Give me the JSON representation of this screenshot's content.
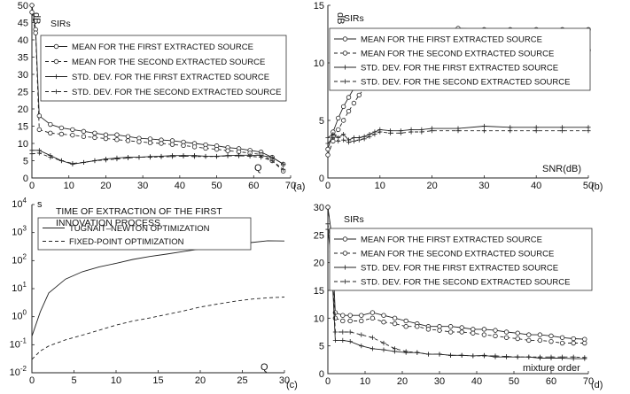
{
  "chart_data": [
    {
      "panel": "(a)",
      "type": "line",
      "title": "SIRs",
      "ylabel": "dB",
      "xlabel": "Q",
      "xlim": [
        0,
        70
      ],
      "ylim": [
        0,
        50
      ],
      "xticks": [
        0,
        10,
        20,
        30,
        40,
        50,
        60,
        70
      ],
      "yticks": [
        0,
        5,
        10,
        15,
        20,
        25,
        30,
        35,
        40,
        45,
        50
      ],
      "legend_position": "top-right",
      "series": [
        {
          "name": "MEAN FOR THE FIRST EXTRACTED SOURCE",
          "style": "solid",
          "marker": "circle",
          "x": [
            0,
            1,
            2,
            5,
            8,
            11,
            14,
            17,
            20,
            23,
            26,
            29,
            32,
            35,
            38,
            41,
            44,
            47,
            50,
            53,
            56,
            59,
            62,
            65,
            68
          ],
          "y": [
            50,
            43,
            18,
            15.5,
            14.5,
            14,
            13.5,
            13,
            12.5,
            12.5,
            12,
            11.5,
            11.3,
            11,
            10.8,
            10.4,
            10,
            9.6,
            9.3,
            8.8,
            8.5,
            8,
            7.5,
            6,
            4
          ]
        },
        {
          "name": "MEAN FOR THE SECOND EXTRACTED SOURCE",
          "style": "dashed",
          "marker": "circle",
          "x": [
            0,
            1,
            2,
            5,
            8,
            11,
            14,
            17,
            20,
            23,
            26,
            29,
            32,
            35,
            38,
            41,
            44,
            47,
            50,
            53,
            56,
            59,
            62,
            65,
            68
          ],
          "y": [
            48,
            42,
            14,
            13,
            12.7,
            12.4,
            12,
            11.7,
            11.4,
            11.1,
            10.8,
            10.5,
            10.2,
            10,
            9.7,
            9.4,
            9,
            8.6,
            8.3,
            7.9,
            7.6,
            7.2,
            6.8,
            5,
            2
          ]
        },
        {
          "name": "STD. DEV. FOR THE FIRST EXTRACTED SOURCE",
          "style": "solid",
          "marker": "plus",
          "x": [
            0,
            2,
            5,
            8,
            11,
            14,
            17,
            20,
            23,
            26,
            29,
            32,
            35,
            38,
            41,
            44,
            47,
            50,
            53,
            56,
            59,
            62,
            65,
            68
          ],
          "y": [
            8,
            8,
            6.5,
            5,
            4,
            4.5,
            5,
            5.5,
            5.8,
            6,
            6,
            6.2,
            6.3,
            6.5,
            6.5,
            6.5,
            6.3,
            6.3,
            6.5,
            6.6,
            6.6,
            6.5,
            6,
            4
          ]
        },
        {
          "name": "STD. DEV. FOR THE SECOND EXTRACTED SOURCE",
          "style": "dashed",
          "marker": "plus",
          "x": [
            0,
            2,
            5,
            8,
            11,
            14,
            17,
            20,
            23,
            26,
            29,
            32,
            35,
            38,
            41,
            44,
            47,
            50,
            53,
            56,
            59,
            62,
            65,
            68
          ],
          "y": [
            7,
            7.2,
            6,
            5,
            4.2,
            4.5,
            5,
            5.2,
            5.5,
            5.8,
            6,
            6,
            6.1,
            6.2,
            6.3,
            6.2,
            6.2,
            6.2,
            6.4,
            6.4,
            6.3,
            6,
            5,
            2.5
          ]
        }
      ]
    },
    {
      "panel": "(b)",
      "type": "line",
      "title": "SIRs",
      "ylabel": "dB",
      "xlabel": "SNR(dB)",
      "xlim": [
        0,
        50
      ],
      "ylim": [
        0,
        15
      ],
      "xticks": [
        0,
        10,
        20,
        30,
        40,
        50
      ],
      "yticks": [
        0,
        5,
        10,
        15
      ],
      "legend_position": "top-right",
      "series": [
        {
          "name": "MEAN FOR THE FIRST EXTRACTED SOURCE",
          "style": "solid",
          "marker": "circle",
          "x": [
            0,
            1,
            2,
            3,
            4,
            5,
            6,
            7,
            8,
            9,
            10,
            12,
            14,
            16,
            18,
            20,
            25,
            30,
            35,
            40,
            45,
            50
          ],
          "y": [
            2.5,
            4,
            5.2,
            6.2,
            7,
            7.8,
            8.5,
            9,
            9.5,
            10,
            10.4,
            11.2,
            11.8,
            12.3,
            12.6,
            12.8,
            13,
            12.9,
            12.9,
            12.9,
            12.9,
            12.9
          ]
        },
        {
          "name": "MEAN FOR THE SECOND EXTRACTED SOURCE",
          "style": "dashed",
          "marker": "circle",
          "x": [
            0,
            1,
            2,
            3,
            4,
            5,
            6,
            7,
            8,
            9,
            10,
            12,
            14,
            16,
            18,
            20,
            25,
            30,
            35,
            40,
            45,
            50
          ],
          "y": [
            2,
            3.2,
            4.2,
            5,
            5.8,
            6.5,
            7.2,
            7.8,
            8.3,
            8.8,
            9.3,
            10,
            10.5,
            10.8,
            11,
            11.1,
            11.2,
            11.2,
            11.2,
            11.2,
            11.2,
            11.1
          ]
        },
        {
          "name": "STD. DEV. FOR THE FIRST EXTRACTED SOURCE",
          "style": "solid",
          "marker": "plus",
          "x": [
            0,
            1,
            2,
            3,
            4,
            5,
            6,
            7,
            8,
            9,
            10,
            12,
            14,
            16,
            18,
            20,
            25,
            30,
            35,
            40,
            45,
            50
          ],
          "y": [
            3.5,
            3.8,
            3.5,
            3.8,
            3.3,
            3.5,
            3.5,
            3.6,
            3.8,
            4,
            4.2,
            4.1,
            4.1,
            4.2,
            4.2,
            4.3,
            4.3,
            4.5,
            4.4,
            4.4,
            4.4,
            4.4
          ]
        },
        {
          "name": "STD. DEV. FOR THE SECOND EXTRACTED SOURCE",
          "style": "dashed",
          "marker": "plus",
          "x": [
            0,
            1,
            2,
            3,
            4,
            5,
            6,
            7,
            8,
            9,
            10,
            12,
            14,
            16,
            18,
            20,
            25,
            30,
            35,
            40,
            45,
            50
          ],
          "y": [
            3,
            3.5,
            3.2,
            3.3,
            3.1,
            3.2,
            3.3,
            3.4,
            3.6,
            3.8,
            4,
            3.9,
            3.9,
            4,
            4,
            4.1,
            4.1,
            4.1,
            4.1,
            4.1,
            4.1,
            4.1
          ]
        }
      ]
    },
    {
      "panel": "(c)",
      "type": "line",
      "title": "TIME OF EXTRACTION OF THE FIRST INNOVATION PROCESS",
      "ylabel": "s",
      "xlabel": "Q",
      "xlim": [
        0,
        30
      ],
      "ylim": [
        0.01,
        10000
      ],
      "yscale": "log",
      "xticks": [
        0,
        5,
        10,
        15,
        20,
        25,
        30
      ],
      "ytick_exponents": [
        -2,
        -1,
        0,
        1,
        2,
        3,
        4
      ],
      "legend_position": "top-left",
      "series": [
        {
          "name": "TUGNAIT–NEWTON OPTIMIZATION",
          "style": "solid",
          "marker": "none",
          "x": [
            0,
            1,
            2,
            4,
            6,
            8,
            10,
            12,
            14,
            16,
            18,
            20,
            22,
            24,
            26,
            28,
            30
          ],
          "y": [
            0.2,
            1.5,
            7,
            22,
            40,
            60,
            80,
            110,
            140,
            170,
            210,
            260,
            310,
            370,
            440,
            510,
            500
          ]
        },
        {
          "name": "FIXED-POINT OPTIMIZATION",
          "style": "dashed",
          "marker": "none",
          "x": [
            0,
            1,
            2,
            4,
            6,
            8,
            10,
            12,
            14,
            16,
            18,
            20,
            22,
            24,
            26,
            28,
            30
          ],
          "y": [
            0.03,
            0.06,
            0.09,
            0.15,
            0.22,
            0.33,
            0.5,
            0.7,
            0.9,
            1.2,
            1.6,
            2.2,
            2.8,
            3.5,
            4.2,
            4.7,
            5
          ]
        }
      ]
    },
    {
      "panel": "(d)",
      "type": "line",
      "title": "SIRs",
      "ylabel": "",
      "xlabel": "mixture order",
      "xlim": [
        0,
        70
      ],
      "ylim": [
        0,
        30
      ],
      "xticks": [
        0,
        10,
        20,
        30,
        40,
        50,
        60,
        70
      ],
      "yticks": [
        0,
        5,
        10,
        15,
        20,
        25,
        30
      ],
      "legend_position": "top-right",
      "series": [
        {
          "name": "MEAN FOR THE FIRST EXTRACTED SOURCE",
          "style": "solid",
          "marker": "circle",
          "x": [
            0,
            1,
            2,
            4,
            6,
            9,
            12,
            15,
            18,
            21,
            24,
            27,
            30,
            33,
            36,
            39,
            42,
            45,
            48,
            51,
            54,
            57,
            60,
            63,
            66,
            69
          ],
          "y": [
            30,
            25,
            11,
            10.5,
            10.5,
            10.5,
            11,
            10.5,
            10,
            9.5,
            9,
            8.5,
            8.5,
            8.5,
            8.3,
            8,
            8,
            7.8,
            7.5,
            7.3,
            7,
            7,
            6.8,
            6.5,
            6.3,
            6.2
          ]
        },
        {
          "name": "MEAN FOR THE SECOND EXTRACTED SOURCE",
          "style": "dashed",
          "marker": "circle",
          "x": [
            0,
            1,
            2,
            4,
            6,
            9,
            12,
            15,
            18,
            21,
            24,
            27,
            30,
            33,
            36,
            39,
            42,
            45,
            48,
            51,
            54,
            57,
            60,
            63,
            66,
            69
          ],
          "y": [
            30,
            25,
            10,
            9.5,
            9.5,
            9.5,
            10,
            9.3,
            9,
            8.5,
            8.5,
            8,
            7.8,
            7.5,
            7.5,
            7.3,
            7,
            6.8,
            6.5,
            6.3,
            6,
            6,
            5.8,
            5.5,
            5.5,
            5.5
          ]
        },
        {
          "name": "STD. DEV. FOR THE FIRST EXTRACTED SOURCE",
          "style": "solid",
          "marker": "plus",
          "x": [
            0,
            1,
            2,
            4,
            6,
            9,
            12,
            15,
            18,
            21,
            24,
            27,
            30,
            33,
            36,
            39,
            42,
            45,
            48,
            51,
            54,
            57,
            60,
            63,
            66,
            69
          ],
          "y": [
            26,
            20,
            6,
            6,
            5.8,
            5,
            4.5,
            4.3,
            4,
            3.8,
            3.8,
            3.5,
            3.5,
            3.3,
            3.3,
            3.2,
            3.3,
            3,
            3,
            3,
            3,
            2.8,
            2.8,
            2.8,
            2.7,
            2.7
          ]
        },
        {
          "name": "STD. DEV. FOR THE SECOND EXTRACTED SOURCE",
          "style": "dashed",
          "marker": "plus",
          "x": [
            0,
            1,
            2,
            4,
            6,
            9,
            12,
            15,
            18,
            21,
            24,
            27,
            30,
            33,
            36,
            39,
            42,
            45,
            48,
            51,
            54,
            57,
            60,
            63,
            66,
            69
          ],
          "y": [
            27,
            22,
            7.5,
            7.5,
            7.5,
            7,
            6.5,
            5.5,
            4.5,
            4,
            3.8,
            3.5,
            3.5,
            3.3,
            3.3,
            3.2,
            3.2,
            3.2,
            3.1,
            3,
            3,
            3,
            3,
            3,
            3,
            2.9
          ]
        }
      ]
    }
  ]
}
